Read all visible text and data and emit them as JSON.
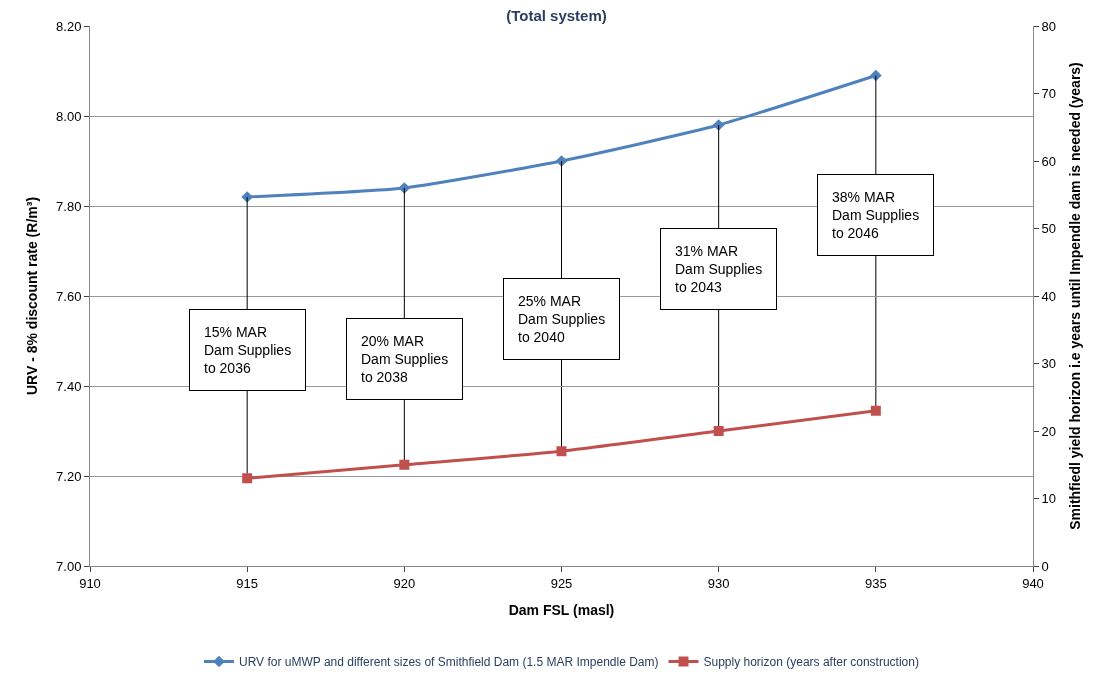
{
  "chart_data": {
    "type": "line",
    "title": "(Total system)",
    "xlabel": "Dam FSL (masl)",
    "ylabel": "URV - 8% discount rate (R/m³)",
    "y2label": "Smithfiedl yield horizon i.e years until Impendle dam is needed (years)",
    "x": [
      915,
      920,
      925,
      930,
      935
    ],
    "series": [
      {
        "name": "URV for uMWP and different sizes of Smithfield Dam (1.5 MAR Impendle Dam)",
        "color": "#4f81bd",
        "values": [
          7.82,
          7.84,
          7.9,
          7.98,
          8.09
        ],
        "marker": "diamond"
      },
      {
        "name": "Supply horizon (years after construction)",
        "color": "#c0504d",
        "values": [
          13,
          15,
          17,
          20,
          23
        ],
        "marker": "square",
        "axis": "y2"
      }
    ],
    "xlim": [
      910,
      940
    ],
    "xticks": [
      910,
      915,
      920,
      925,
      930,
      935,
      940
    ],
    "ylim": [
      7.0,
      8.2
    ],
    "yticks": [
      {
        "value": 7.0,
        "label": "7.00"
      },
      {
        "value": 7.2,
        "label": "7.20"
      },
      {
        "value": 7.4,
        "label": "7.40"
      },
      {
        "value": 7.6,
        "label": "7.60"
      },
      {
        "value": 7.8,
        "label": "7.80"
      },
      {
        "value": 8.0,
        "label": "8.00"
      },
      {
        "value": 8.2,
        "label": "8.20"
      }
    ],
    "y2lim": [
      0,
      80
    ],
    "y2ticks": [
      0,
      10,
      20,
      30,
      40,
      50,
      60,
      70,
      80
    ],
    "grid": "y",
    "legend": "bottom",
    "line_style": "solid",
    "annotations": [
      {
        "text": "15% MAR\nDam Supplies\nto 2036",
        "x": 915,
        "y": 7.82
      },
      {
        "text": "20% MAR\nDam Supplies\nto 2038",
        "x": 920,
        "y": 7.84
      },
      {
        "text": "25% MAR\nDam Supplies\nto 2040",
        "x": 925,
        "y": 7.9
      },
      {
        "text": "31% MAR\nDam Supplies\nto 2043",
        "x": 930,
        "y": 7.98
      },
      {
        "text": "38% MAR\nDam Supplies\nto 2046",
        "x": 935,
        "y": 8.09
      }
    ]
  }
}
